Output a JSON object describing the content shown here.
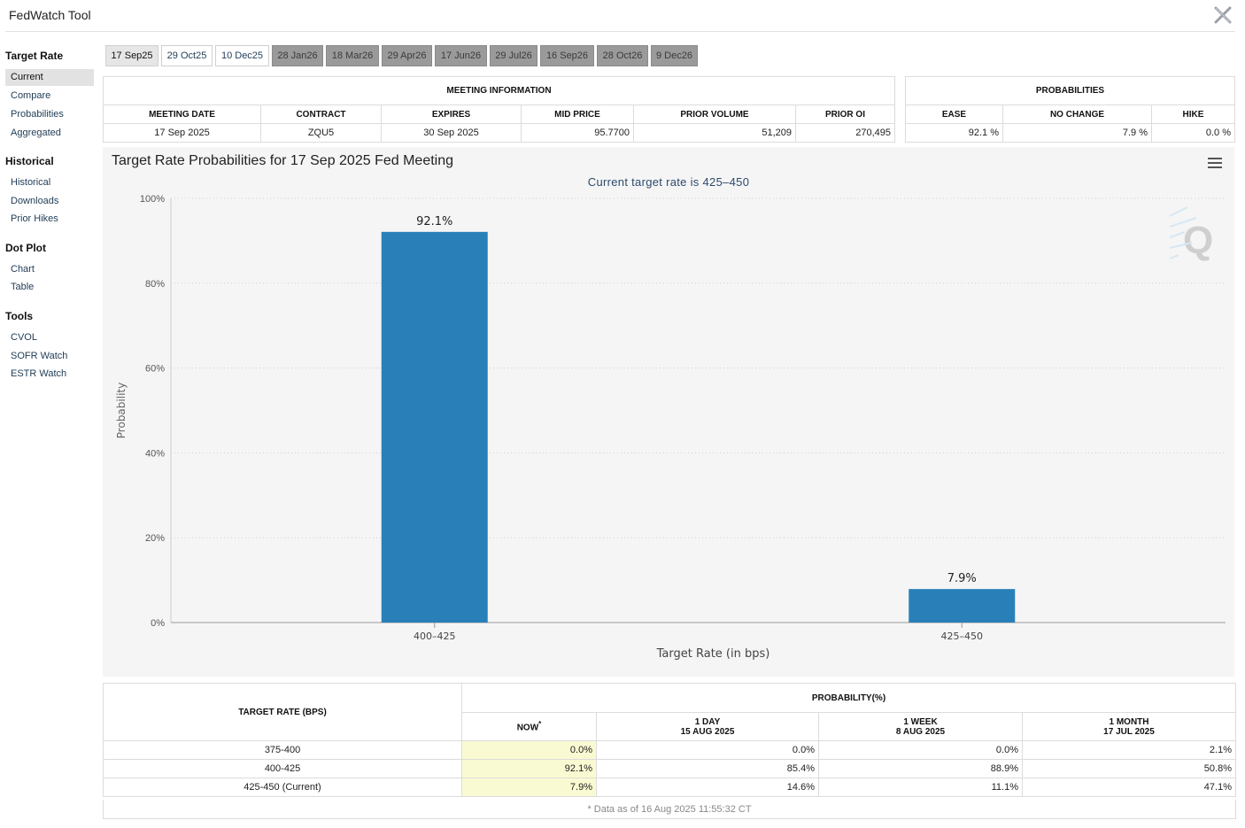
{
  "app": {
    "title": "FedWatch Tool"
  },
  "sidebar": {
    "groups": [
      {
        "label": "Target Rate",
        "items": [
          "Current",
          "Compare",
          "Probabilities",
          "Aggregated"
        ]
      },
      {
        "label": "Historical",
        "items": [
          "Historical",
          "Downloads",
          "Prior Hikes"
        ]
      },
      {
        "label": "Dot Plot",
        "items": [
          "Chart",
          "Table"
        ]
      },
      {
        "label": "Tools",
        "items": [
          "CVOL",
          "SOFR Watch",
          "ESTR Watch"
        ]
      }
    ],
    "active": "Current"
  },
  "tabs": [
    {
      "label": "17 Sep25",
      "state": "selected"
    },
    {
      "label": "29 Oct25",
      "state": "normal"
    },
    {
      "label": "10 Dec25",
      "state": "normal"
    },
    {
      "label": "28 Jan26",
      "state": "future"
    },
    {
      "label": "18 Mar26",
      "state": "future"
    },
    {
      "label": "29 Apr26",
      "state": "future"
    },
    {
      "label": "17 Jun26",
      "state": "future"
    },
    {
      "label": "29 Jul26",
      "state": "future"
    },
    {
      "label": "16 Sep26",
      "state": "future"
    },
    {
      "label": "28 Oct26",
      "state": "future"
    },
    {
      "label": "9 Dec26",
      "state": "future"
    }
  ],
  "meeting": {
    "header": "MEETING INFORMATION",
    "columns": [
      "MEETING DATE",
      "CONTRACT",
      "EXPIRES",
      "MID PRICE",
      "PRIOR VOLUME",
      "PRIOR OI"
    ],
    "values": [
      "17 Sep 2025",
      "ZQU5",
      "30 Sep 2025",
      "95.7700",
      "51,209",
      "270,495"
    ]
  },
  "probabilities": {
    "header": "PROBABILITIES",
    "columns": [
      "EASE",
      "NO CHANGE",
      "HIKE"
    ],
    "values": [
      "92.1 %",
      "7.9 %",
      "0.0 %"
    ]
  },
  "chart_data": {
    "type": "bar",
    "title": "Target Rate Probabilities for 17 Sep 2025 Fed Meeting",
    "subtitle": "Current target rate is 425–450",
    "categories": [
      "400–425",
      "425–450"
    ],
    "values": [
      92.1,
      7.9
    ],
    "data_labels": [
      "92.1%",
      "7.9%"
    ],
    "xlabel": "Target Rate (in bps)",
    "ylabel": "Probability",
    "ylim": [
      0,
      100
    ],
    "yticks": [
      0,
      20,
      40,
      60,
      80,
      100
    ],
    "ytick_labels": [
      "0%",
      "20%",
      "40%",
      "60%",
      "80%",
      "100%"
    ],
    "grid": true,
    "bar_color": "#2980b9"
  },
  "bottom_table": {
    "col_header": "TARGET RATE (BPS)",
    "group_header": "PROBABILITY(%)",
    "cols": [
      {
        "line1": "NOW",
        "line2": "",
        "mark": "*"
      },
      {
        "line1": "1 DAY",
        "line2": "15 AUG 2025",
        "mark": ""
      },
      {
        "line1": "1 WEEK",
        "line2": "8 AUG 2025",
        "mark": ""
      },
      {
        "line1": "1 MONTH",
        "line2": "17 JUL 2025",
        "mark": ""
      }
    ],
    "rows": [
      {
        "rate": "375-400",
        "values": [
          "0.0%",
          "0.0%",
          "0.0%",
          "2.1%"
        ]
      },
      {
        "rate": "400-425",
        "values": [
          "92.1%",
          "85.4%",
          "88.9%",
          "50.8%"
        ]
      },
      {
        "rate": "425-450 (Current)",
        "values": [
          "7.9%",
          "14.6%",
          "11.1%",
          "47.1%"
        ]
      }
    ],
    "footnote": "* Data as of 16 Aug 2025 11:55:32 CT"
  },
  "colors": {
    "accent": "#2980b9",
    "now_highlight": "#fafad2",
    "future_tab": "#9a9a9a"
  }
}
